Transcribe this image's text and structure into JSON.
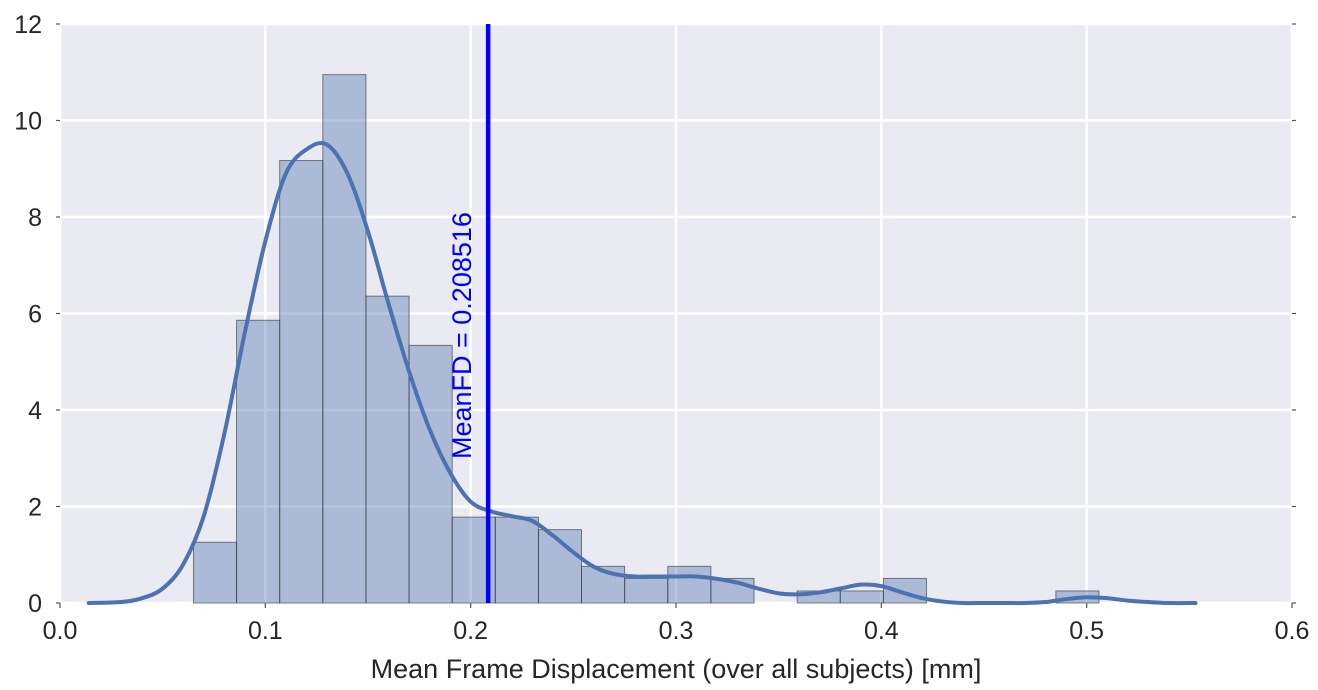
{
  "chart_data": {
    "type": "histogram",
    "xlabel": "Mean Frame Displacement (over all subjects) [mm]",
    "ylabel": "",
    "title": "",
    "xlim": [
      0.0,
      0.6
    ],
    "ylim": [
      0,
      12
    ],
    "x_ticks": [
      "0.0",
      "0.1",
      "0.2",
      "0.3",
      "0.4",
      "0.5",
      "0.6"
    ],
    "y_ticks": [
      "0",
      "2",
      "4",
      "6",
      "8",
      "10",
      "12"
    ],
    "grid": true,
    "background_color": "#EAEAF2",
    "bar_color": "#4C72B0",
    "kde_color": "#4C72B0",
    "mean_line_color": "#0000FF",
    "bin_edges": [
      0.065,
      0.086,
      0.107,
      0.128,
      0.149,
      0.17,
      0.191,
      0.212,
      0.233,
      0.254,
      0.275,
      0.296,
      0.317,
      0.338,
      0.359,
      0.38,
      0.401,
      0.422,
      0.443,
      0.464,
      0.485,
      0.506
    ],
    "bar_heights": [
      1.26,
      5.86,
      9.17,
      10.95,
      6.36,
      5.34,
      1.78,
      1.78,
      1.52,
      0.76,
      0.51,
      0.76,
      0.51,
      0.0,
      0.25,
      0.25,
      0.51,
      0.0,
      0.0,
      0.0,
      0.25
    ],
    "kde": {
      "x": [
        0.014,
        0.03,
        0.04,
        0.05,
        0.06,
        0.07,
        0.08,
        0.09,
        0.1,
        0.11,
        0.12,
        0.13,
        0.14,
        0.15,
        0.16,
        0.17,
        0.18,
        0.19,
        0.2,
        0.21,
        0.22,
        0.23,
        0.24,
        0.25,
        0.26,
        0.27,
        0.28,
        0.29,
        0.3,
        0.31,
        0.32,
        0.33,
        0.34,
        0.35,
        0.36,
        0.37,
        0.38,
        0.39,
        0.4,
        0.41,
        0.42,
        0.43,
        0.44,
        0.45,
        0.46,
        0.47,
        0.48,
        0.49,
        0.5,
        0.51,
        0.52,
        0.53,
        0.54,
        0.553
      ],
      "y": [
        0.0,
        0.02,
        0.1,
        0.3,
        0.8,
        1.8,
        3.5,
        5.6,
        7.5,
        8.9,
        9.4,
        9.5,
        8.9,
        7.7,
        6.2,
        4.8,
        3.6,
        2.7,
        2.1,
        1.9,
        1.8,
        1.7,
        1.4,
        1.05,
        0.75,
        0.6,
        0.55,
        0.55,
        0.55,
        0.55,
        0.5,
        0.42,
        0.3,
        0.2,
        0.18,
        0.22,
        0.3,
        0.38,
        0.35,
        0.22,
        0.1,
        0.03,
        0.0,
        0.0,
        0.0,
        0.0,
        0.02,
        0.08,
        0.12,
        0.1,
        0.05,
        0.02,
        0.0,
        0.0
      ]
    },
    "mean_line": {
      "x": 0.208516,
      "label": "MeanFD = 0.208516"
    }
  }
}
